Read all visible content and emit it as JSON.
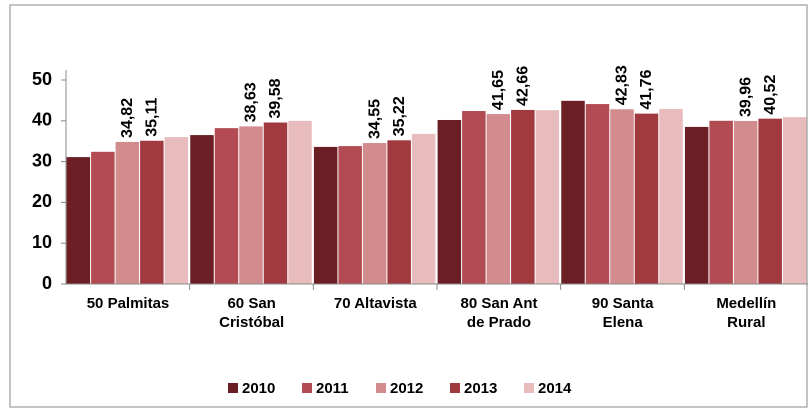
{
  "chart_data": {
    "type": "bar",
    "categories": [
      "50 Palmitas",
      "60 San\nCristóbal",
      "70 Altavista",
      "80 San Ant\nde Prado",
      "90 Santa\nElena",
      "Medellín\nRural"
    ],
    "series": [
      {
        "name": "2010",
        "color": "#6b1f24",
        "values": [
          31.1,
          36.5,
          33.6,
          40.2,
          44.9,
          38.5
        ]
      },
      {
        "name": "2011",
        "color": "#b24c52",
        "values": [
          32.4,
          38.2,
          33.8,
          42.4,
          44.1,
          40.0
        ]
      },
      {
        "name": "2012",
        "color": "#d28c8e",
        "values": [
          34.82,
          38.63,
          34.55,
          41.65,
          42.83,
          39.96
        ],
        "value_labels": [
          "34,82",
          "38,63",
          "34,55",
          "41,65",
          "42,83",
          "39,96"
        ]
      },
      {
        "name": "2013",
        "color": "#a03a3f",
        "values": [
          35.11,
          39.58,
          35.22,
          42.66,
          41.76,
          40.52
        ],
        "value_labels": [
          "35,11",
          "39,58",
          "35,22",
          "42,66",
          "41,76",
          "40,52"
        ]
      },
      {
        "name": "2014",
        "color": "#e8bcbd",
        "values": [
          36.0,
          40.0,
          36.8,
          42.6,
          42.9,
          40.9
        ]
      }
    ],
    "ylim": [
      0,
      50
    ],
    "yticks": [
      0,
      10,
      20,
      30,
      40,
      50
    ],
    "grid": false,
    "legend": "bottom"
  }
}
